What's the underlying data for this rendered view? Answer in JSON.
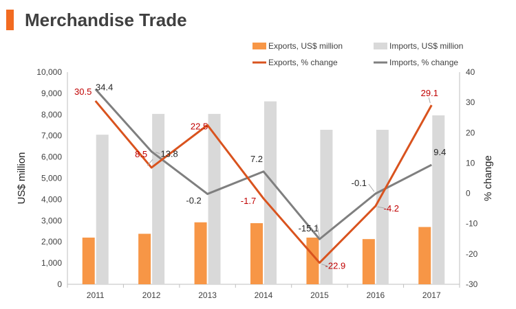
{
  "header": {
    "title": "Merchandise Trade",
    "accent_color": "#f26b21"
  },
  "chart_data": {
    "type": "bar",
    "title": "Merchandise Trade",
    "categories": [
      "2011",
      "2012",
      "2013",
      "2014",
      "2015",
      "2016",
      "2017"
    ],
    "ylabel": "US$ million",
    "y2label": "% change",
    "ylim": [
      0,
      10000
    ],
    "y2lim": [
      -30,
      40
    ],
    "yticks": [
      "0",
      "1,000",
      "2,000",
      "3,000",
      "4,000",
      "5,000",
      "6,000",
      "7,000",
      "8,000",
      "9,000",
      "10,000"
    ],
    "y2ticks": [
      "-30",
      "-20",
      "-10",
      "0",
      "10",
      "20",
      "30",
      "40"
    ],
    "legend_position": "top",
    "series": [
      {
        "name": "Exports, US$ million",
        "kind": "bar",
        "axis": "left",
        "color": "#f79646",
        "values": [
          2200,
          2380,
          2920,
          2880,
          2200,
          2130,
          2700
        ]
      },
      {
        "name": "Imports, US$ million",
        "kind": "bar",
        "axis": "left",
        "color": "#d9d9d9",
        "values": [
          7050,
          8030,
          8030,
          8620,
          7280,
          7280,
          7960
        ]
      },
      {
        "name": "Exports, % change",
        "kind": "line",
        "axis": "right",
        "color": "#d9531e",
        "label_color": "#c00000",
        "values": [
          30.5,
          8.5,
          22.5,
          -1.7,
          -22.9,
          -4.2,
          29.1
        ],
        "labels": [
          "30.5",
          "8.5",
          "22.5",
          "-1.7",
          "-22.9",
          "-4.2",
          "29.1"
        ]
      },
      {
        "name": "Imports, % change",
        "kind": "line",
        "axis": "right",
        "color": "#7f7f7f",
        "label_color": "#262626",
        "values": [
          34.4,
          13.8,
          -0.2,
          7.2,
          -15.1,
          -0.1,
          9.4
        ],
        "labels": [
          "34.4",
          "13.8",
          "-0.2",
          "7.2",
          "-15.1",
          "-0.1",
          "9.4"
        ]
      }
    ]
  }
}
